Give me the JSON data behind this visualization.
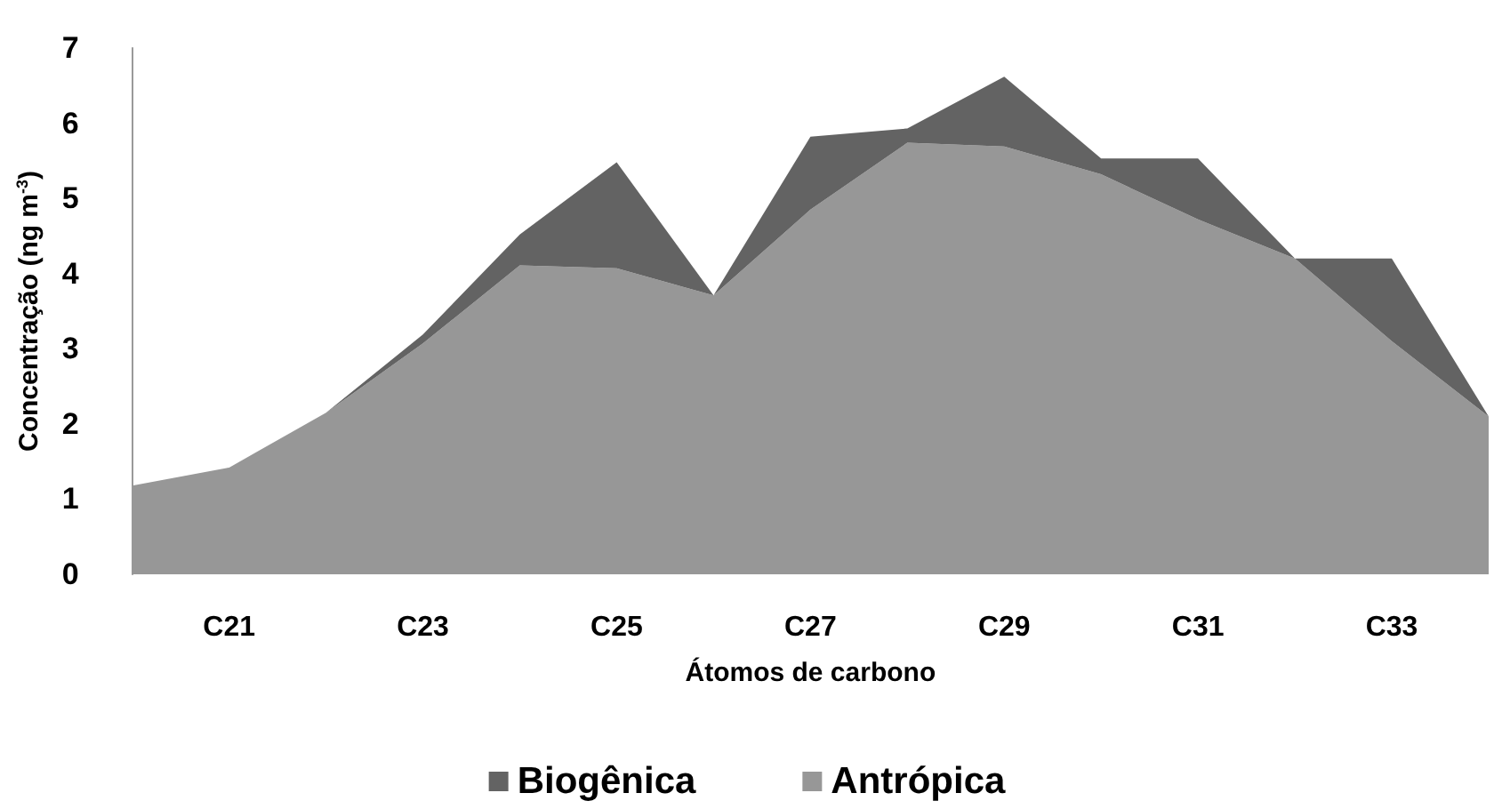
{
  "chart_data": {
    "type": "area",
    "stacked": true,
    "xlabel": "Átomos de carbono",
    "ylabel": "Concentração (ng m$^{-3}$)",
    "categories": [
      null,
      "C21",
      null,
      "C23",
      null,
      "C25",
      null,
      "C27",
      null,
      "C29",
      null,
      "C31",
      null,
      "C33",
      null
    ],
    "series": [
      {
        "name": "Antrópica",
        "color": "#979797",
        "values": [
          1.18,
          1.42,
          2.15,
          3.07,
          4.11,
          4.07,
          3.71,
          4.85,
          5.74,
          5.69,
          5.32,
          4.72,
          4.2,
          3.1,
          2.1
        ]
      },
      {
        "name": "Biogênica",
        "color": "#636363",
        "values": [
          0,
          0,
          0,
          0.12,
          0.41,
          1.41,
          0,
          0.97,
          0.19,
          0.93,
          0.21,
          0.81,
          0,
          1.1,
          0
        ]
      }
    ],
    "ylim": [
      0,
      7
    ],
    "yticks": [
      0,
      1,
      2,
      3,
      4,
      5,
      6,
      7
    ],
    "grid": false,
    "legend": "bottom",
    "marker": "none"
  }
}
